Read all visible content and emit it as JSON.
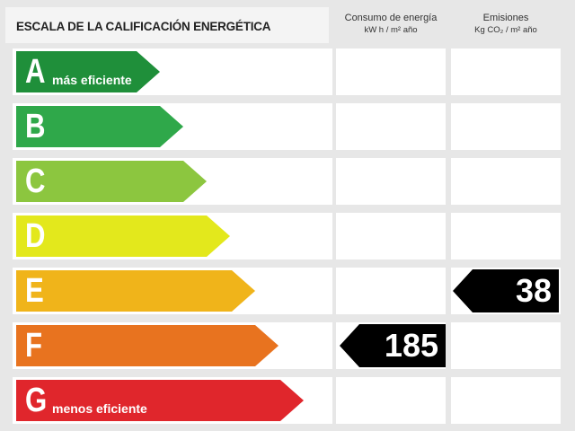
{
  "header": {
    "title": "ESCALA DE LA CALIFICACIÓN ENERGÉTICA",
    "col1_line1": "Consumo de energía",
    "col1_line2": "kW h / m² año",
    "col2_line1": "Emisiones",
    "col2_line2": "Kg CO₂ / m² año"
  },
  "ratings": [
    {
      "letter": "A",
      "sub": "más eficiente",
      "color": "#1f8f3a"
    },
    {
      "letter": "B",
      "sub": "",
      "color": "#2fa84a"
    },
    {
      "letter": "C",
      "sub": "",
      "color": "#8cc63f"
    },
    {
      "letter": "D",
      "sub": "",
      "color": "#e3e81c"
    },
    {
      "letter": "E",
      "sub": "",
      "color": "#f0b41a"
    },
    {
      "letter": "F",
      "sub": "",
      "color": "#e8731f"
    },
    {
      "letter": "G",
      "sub": "menos eficiente",
      "color": "#e0262c"
    }
  ],
  "energy_value": {
    "rating": "F",
    "value": "185"
  },
  "emissions_value": {
    "rating": "E",
    "value": "38"
  }
}
